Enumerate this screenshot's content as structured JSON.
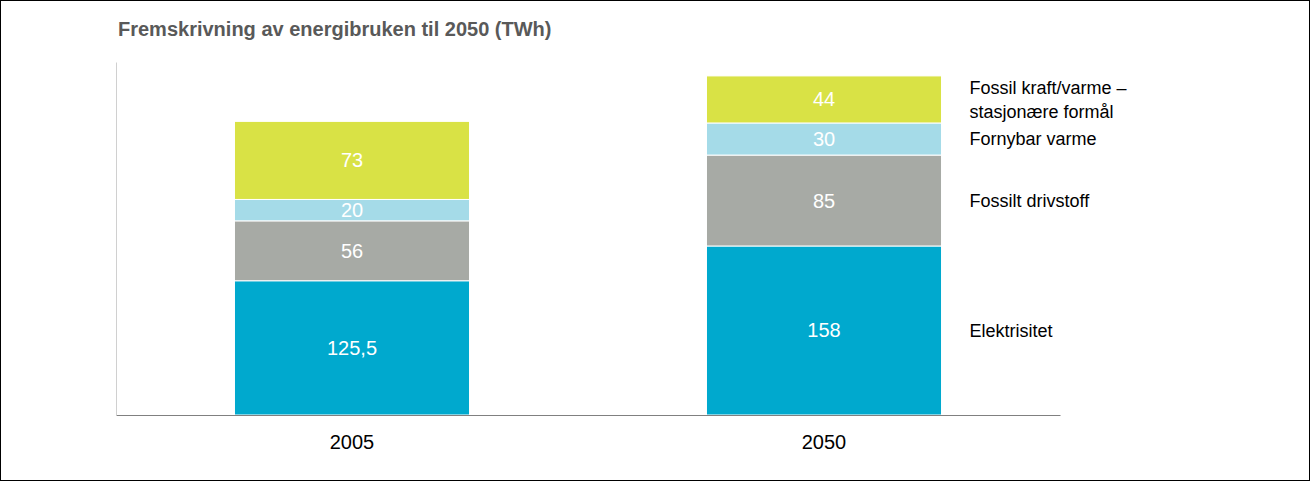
{
  "chart_data": {
    "type": "bar",
    "stacked": true,
    "data_labels": true,
    "tick_labels": "x",
    "title": "Fremskrivning av energibruken til 2050 (TWh)",
    "categories": [
      "2005",
      "2050"
    ],
    "ylim": [
      0,
      330
    ],
    "series": [
      {
        "name": "Elektrisitet",
        "color": "#00a9ce",
        "values": [
          125.5,
          158
        ],
        "value_labels": [
          "125,5",
          "158"
        ]
      },
      {
        "name": "Fossilt drivstoff",
        "color": "#a7aaa5",
        "values": [
          56,
          85
        ]
      },
      {
        "name": "Fornybar varme",
        "color": "#a5dbe8",
        "values": [
          20,
          30
        ]
      },
      {
        "name": "Fossil kraft/varme – stasjonære formål",
        "color": "#d9e245",
        "values": [
          73,
          44
        ]
      }
    ]
  }
}
